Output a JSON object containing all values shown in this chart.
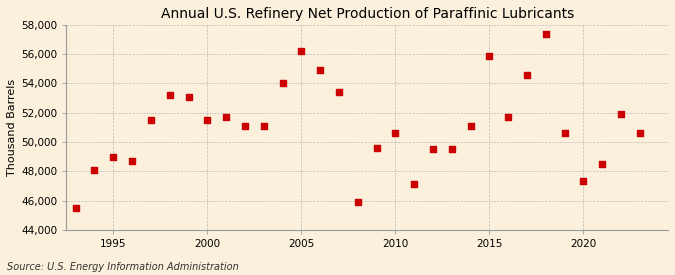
{
  "title": "Annual U.S. Refinery Net Production of Paraffinic Lubricants",
  "ylabel": "Thousand Barrels",
  "source": "Source: U.S. Energy Information Administration",
  "background_color": "#FAF0DC",
  "plot_bg_color": "#FAF0DC",
  "marker_color": "#CC0000",
  "marker": "s",
  "marker_size": 16,
  "years": [
    1993,
    1994,
    1995,
    1996,
    1997,
    1998,
    1999,
    2000,
    2001,
    2002,
    2003,
    2004,
    2005,
    2006,
    2007,
    2008,
    2009,
    2010,
    2011,
    2012,
    2013,
    2014,
    2015,
    2016,
    2017,
    2018,
    2019,
    2020,
    2021,
    2022,
    2023
  ],
  "values": [
    45500,
    48100,
    49000,
    48700,
    51500,
    53200,
    53100,
    51500,
    51700,
    51100,
    51100,
    54000,
    56200,
    54900,
    53400,
    45900,
    49600,
    50600,
    47100,
    49500,
    49500,
    51100,
    55900,
    51700,
    54600,
    57400,
    50600,
    47300,
    48500,
    51900,
    50600
  ],
  "ylim": [
    44000,
    58000
  ],
  "yticks": [
    44000,
    46000,
    48000,
    50000,
    52000,
    54000,
    56000,
    58000
  ],
  "xlim": [
    1992.5,
    2024.5
  ],
  "xticks": [
    1995,
    2000,
    2005,
    2010,
    2015,
    2020
  ],
  "grid_color": "#BBBBBB",
  "title_fontsize": 10,
  "label_fontsize": 8,
  "tick_fontsize": 7.5,
  "source_fontsize": 7
}
